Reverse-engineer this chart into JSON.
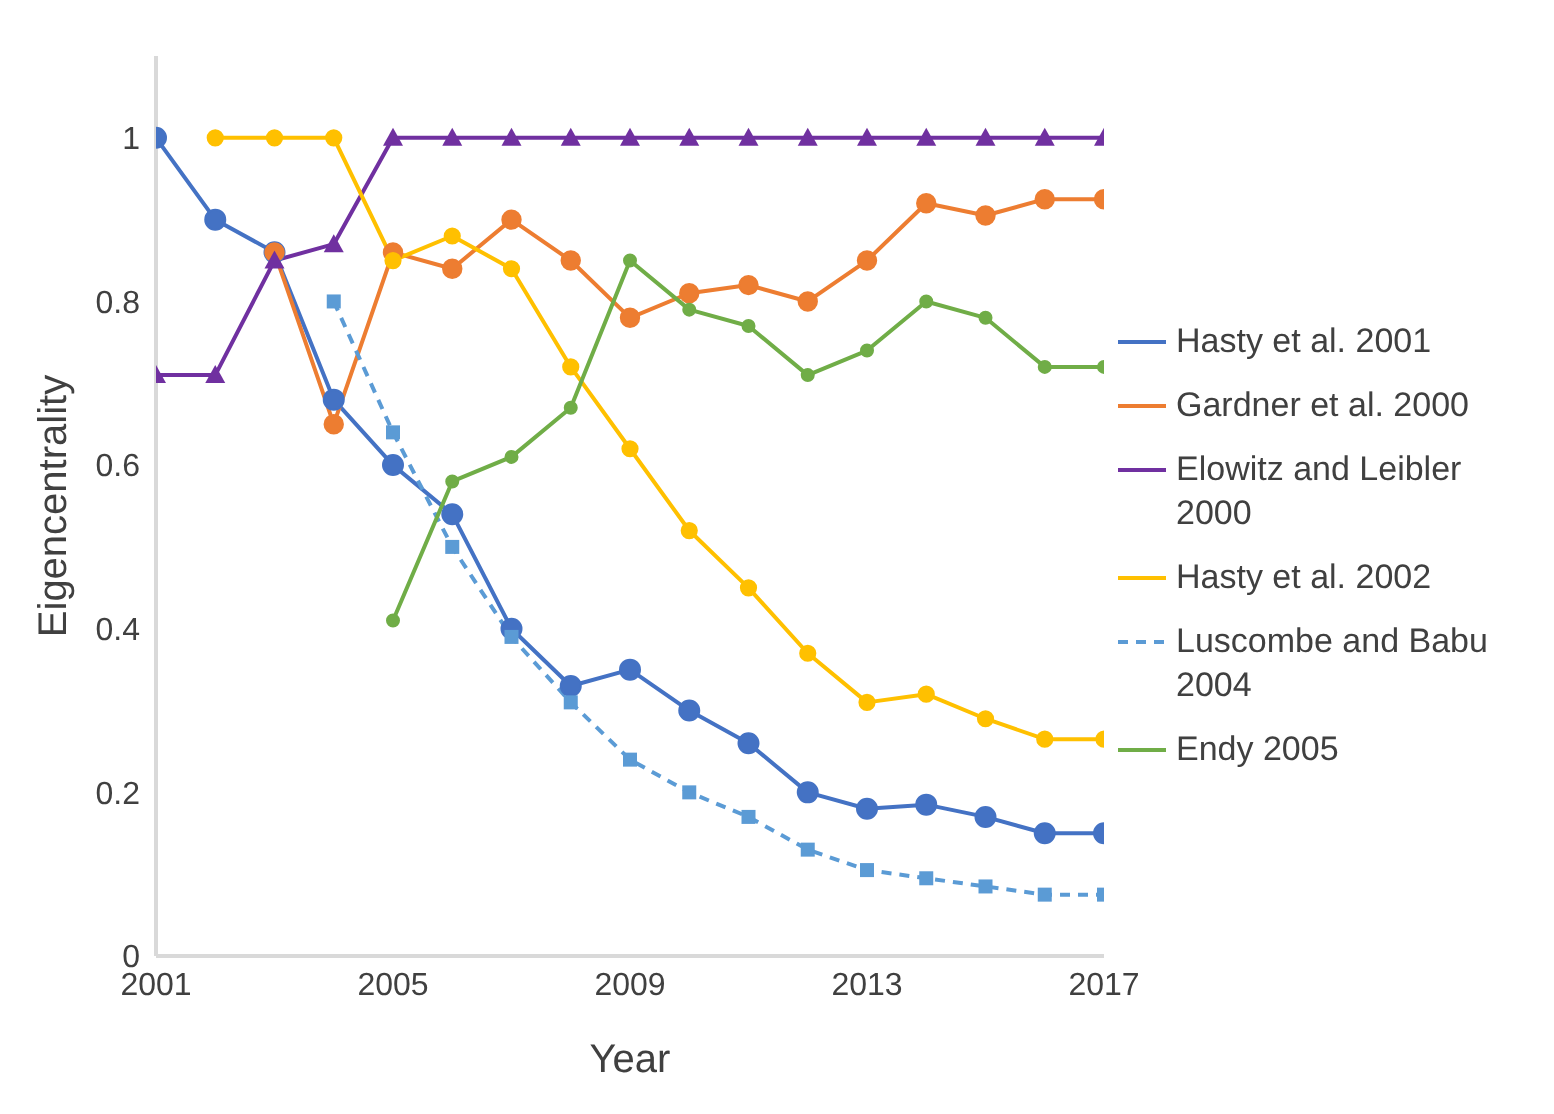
{
  "chart_data": {
    "type": "line",
    "xlabel": "Year",
    "ylabel": "Eigencentrality",
    "xlim": [
      2001,
      2017
    ],
    "xticks": [
      2001,
      2005,
      2009,
      2013,
      2017
    ],
    "ylim": [
      0,
      1.1
    ],
    "yticks": [
      0,
      0.2,
      0.4,
      0.6,
      0.8,
      1
    ],
    "grid": false,
    "legend": "right",
    "series": [
      {
        "name": "Hasty et al. 2001",
        "color": "#4472c4",
        "marker": "circle",
        "line_style": "solid",
        "x": [
          2001,
          2002,
          2003,
          2004,
          2005,
          2006,
          2007,
          2008,
          2009,
          2010,
          2011,
          2012,
          2013,
          2014,
          2015,
          2016,
          2017
        ],
        "values": [
          1.0,
          0.9,
          0.86,
          0.68,
          0.6,
          0.54,
          0.4,
          0.33,
          0.35,
          0.3,
          0.26,
          0.2,
          0.18,
          0.185,
          0.17,
          0.15,
          0.15
        ]
      },
      {
        "name": "Gardner et al. 2000",
        "color": "#ed7d31",
        "marker": "circle",
        "line_style": "solid",
        "x": [
          2003,
          2004,
          2005,
          2006,
          2007,
          2008,
          2009,
          2010,
          2011,
          2012,
          2013,
          2014,
          2015,
          2016,
          2017
        ],
        "values": [
          0.86,
          0.65,
          0.86,
          0.84,
          0.9,
          0.85,
          0.78,
          0.81,
          0.82,
          0.8,
          0.85,
          0.92,
          0.905,
          0.925,
          0.925
        ]
      },
      {
        "name": "Elowitz and Leibler 2000",
        "color": "#7030a0",
        "marker": "triangle",
        "line_style": "solid",
        "x": [
          2001,
          2002,
          2003,
          2004,
          2005,
          2006,
          2007,
          2008,
          2009,
          2010,
          2011,
          2012,
          2013,
          2014,
          2015,
          2016,
          2017
        ],
        "values": [
          0.71,
          0.71,
          0.85,
          0.87,
          1,
          1,
          1,
          1,
          1,
          1,
          1,
          1,
          1,
          1,
          1,
          1,
          1
        ]
      },
      {
        "name": "Hasty et al. 2002",
        "color": "#ffc000",
        "marker": "circle",
        "line_style": "solid",
        "x": [
          2002,
          2003,
          2004,
          2005,
          2006,
          2007,
          2008,
          2009,
          2010,
          2011,
          2012,
          2013,
          2014,
          2015,
          2016,
          2017
        ],
        "values": [
          1,
          1,
          1,
          0.85,
          0.88,
          0.84,
          0.72,
          0.62,
          0.52,
          0.45,
          0.37,
          0.31,
          0.32,
          0.29,
          0.265,
          0.265
        ]
      },
      {
        "name": "Luscombe and Babu 2004",
        "color": "#5b9bd5",
        "marker": "square",
        "line_style": "dashed",
        "x": [
          2004,
          2005,
          2006,
          2007,
          2008,
          2009,
          2010,
          2011,
          2012,
          2013,
          2014,
          2015,
          2016,
          2017
        ],
        "values": [
          0.8,
          0.64,
          0.5,
          0.39,
          0.31,
          0.24,
          0.2,
          0.17,
          0.13,
          0.105,
          0.095,
          0.085,
          0.075,
          0.075
        ]
      },
      {
        "name": "Endy 2005",
        "color": "#70ad47",
        "marker": "circle",
        "line_style": "solid",
        "x": [
          2005,
          2006,
          2007,
          2008,
          2009,
          2010,
          2011,
          2012,
          2013,
          2014,
          2015,
          2016,
          2017
        ],
        "values": [
          0.41,
          0.58,
          0.61,
          0.67,
          0.85,
          0.79,
          0.77,
          0.71,
          0.74,
          0.8,
          0.78,
          0.72,
          0.72
        ]
      }
    ]
  }
}
